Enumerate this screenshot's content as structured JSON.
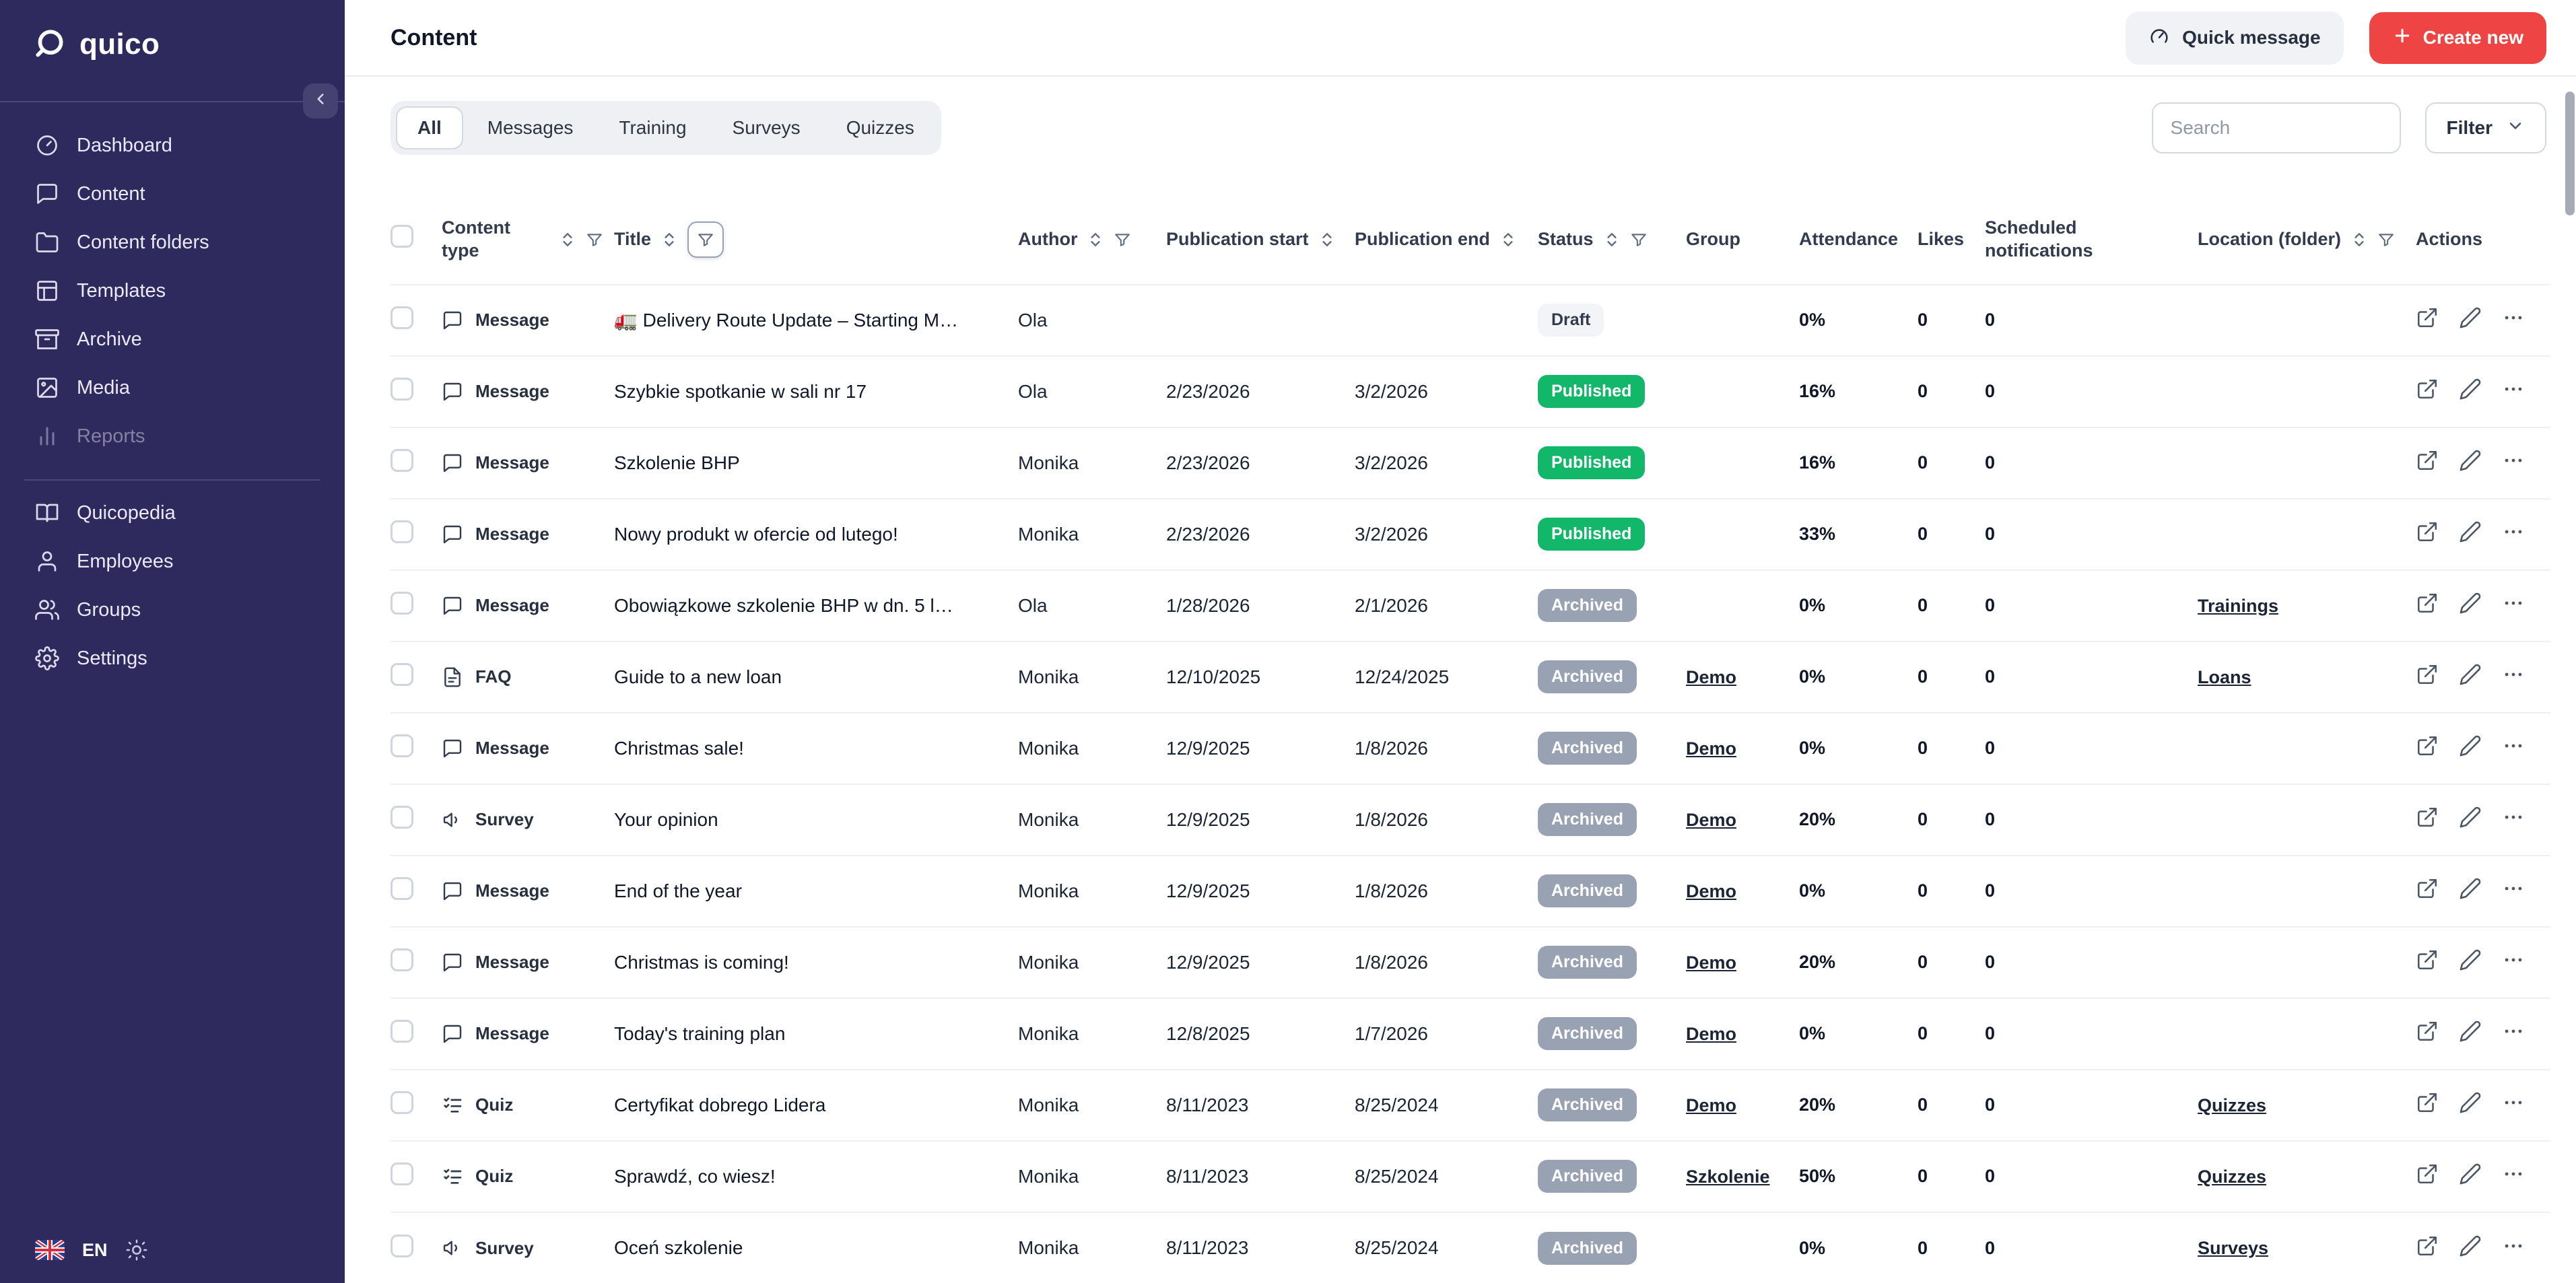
{
  "colors": {
    "sidebar_bg": "#2e2a5e",
    "accent_red": "#ef4444",
    "published_green": "#12b76a",
    "archived_gray": "#98a2b3",
    "draft_bg": "#f2f4f7"
  },
  "sidebar": {
    "logo_text": "quico",
    "language": "EN",
    "primary_items": [
      {
        "id": "dashboard",
        "label": "Dashboard",
        "icon": "dashboard-icon",
        "muted": false
      },
      {
        "id": "content",
        "label": "Content",
        "icon": "chat-icon",
        "muted": false
      },
      {
        "id": "content-folders",
        "label": "Content folders",
        "icon": "folder-icon",
        "muted": false
      },
      {
        "id": "templates",
        "label": "Templates",
        "icon": "template-icon",
        "muted": false
      },
      {
        "id": "archive",
        "label": "Archive",
        "icon": "archive-icon",
        "muted": false
      },
      {
        "id": "media",
        "label": "Media",
        "icon": "image-icon",
        "muted": false
      },
      {
        "id": "reports",
        "label": "Reports",
        "icon": "bar-chart-icon",
        "muted": true
      }
    ],
    "secondary_items": [
      {
        "id": "quicopedia",
        "label": "Quicopedia",
        "icon": "book-icon",
        "muted": false
      },
      {
        "id": "employees",
        "label": "Employees",
        "icon": "user-icon",
        "muted": false
      },
      {
        "id": "groups",
        "label": "Groups",
        "icon": "users-icon",
        "muted": false
      },
      {
        "id": "settings",
        "label": "Settings",
        "icon": "gear-icon",
        "muted": false
      }
    ]
  },
  "header": {
    "title": "Content",
    "quick_message_label": "Quick message",
    "create_new_label": "Create new"
  },
  "toolbar": {
    "tabs": [
      {
        "label": "All",
        "active": true
      },
      {
        "label": "Messages",
        "active": false
      },
      {
        "label": "Training",
        "active": false
      },
      {
        "label": "Surveys",
        "active": false
      },
      {
        "label": "Quizzes",
        "active": false
      }
    ],
    "search_placeholder": "Search",
    "filter_label": "Filter"
  },
  "table": {
    "columns": [
      {
        "id": "type",
        "label": "Content type",
        "sort": true,
        "filter": true,
        "filter_active": false
      },
      {
        "id": "title",
        "label": "Title",
        "sort": true,
        "filter": true,
        "filter_active": true
      },
      {
        "id": "author",
        "label": "Author",
        "sort": true,
        "filter": true,
        "filter_active": false
      },
      {
        "id": "pub_start",
        "label": "Publication start",
        "sort": true,
        "filter": false,
        "filter_active": false
      },
      {
        "id": "pub_end",
        "label": "Publication end",
        "sort": true,
        "filter": false,
        "filter_active": false
      },
      {
        "id": "status",
        "label": "Status",
        "sort": true,
        "filter": true,
        "filter_active": false
      },
      {
        "id": "group",
        "label": "Group",
        "sort": false,
        "filter": false,
        "filter_active": false
      },
      {
        "id": "attendance",
        "label": "Attendance",
        "sort": false,
        "filter": false,
        "filter_active": false
      },
      {
        "id": "likes",
        "label": "Likes",
        "sort": false,
        "filter": false,
        "filter_active": false
      },
      {
        "id": "notifications",
        "label": "Scheduled notifications",
        "sort": false,
        "filter": false,
        "filter_active": false
      },
      {
        "id": "location",
        "label": "Location (folder)",
        "sort": true,
        "filter": true,
        "filter_active": false
      },
      {
        "id": "actions",
        "label": "Actions",
        "sort": false,
        "filter": false,
        "filter_active": false
      }
    ],
    "rows": [
      {
        "type": "Message",
        "title": "🚛 Delivery Route Update – Starting M…",
        "author": "Ola",
        "pub_start": "",
        "pub_end": "",
        "status": "Draft",
        "group": "",
        "attendance": "0%",
        "likes": "0",
        "notifications": "0",
        "location": ""
      },
      {
        "type": "Message",
        "title": "Szybkie spotkanie w sali nr 17",
        "author": "Ola",
        "pub_start": "2/23/2026",
        "pub_end": "3/2/2026",
        "status": "Published",
        "group": "",
        "attendance": "16%",
        "likes": "0",
        "notifications": "0",
        "location": ""
      },
      {
        "type": "Message",
        "title": "Szkolenie BHP",
        "author": "Monika",
        "pub_start": "2/23/2026",
        "pub_end": "3/2/2026",
        "status": "Published",
        "group": "",
        "attendance": "16%",
        "likes": "0",
        "notifications": "0",
        "location": ""
      },
      {
        "type": "Message",
        "title": "Nowy produkt w ofercie od lutego!",
        "author": "Monika",
        "pub_start": "2/23/2026",
        "pub_end": "3/2/2026",
        "status": "Published",
        "group": "",
        "attendance": "33%",
        "likes": "0",
        "notifications": "0",
        "location": ""
      },
      {
        "type": "Message",
        "title": "Obowiązkowe szkolenie BHP w dn. 5 l…",
        "author": "Ola",
        "pub_start": "1/28/2026",
        "pub_end": "2/1/2026",
        "status": "Archived",
        "group": "",
        "attendance": "0%",
        "likes": "0",
        "notifications": "0",
        "location": "Trainings"
      },
      {
        "type": "FAQ",
        "title": "Guide to a new loan",
        "author": "Monika",
        "pub_start": "12/10/2025",
        "pub_end": "12/24/2025",
        "status": "Archived",
        "group": "Demo",
        "attendance": "0%",
        "likes": "0",
        "notifications": "0",
        "location": "Loans"
      },
      {
        "type": "Message",
        "title": "Christmas sale!",
        "author": "Monika",
        "pub_start": "12/9/2025",
        "pub_end": "1/8/2026",
        "status": "Archived",
        "group": "Demo",
        "attendance": "0%",
        "likes": "0",
        "notifications": "0",
        "location": ""
      },
      {
        "type": "Survey",
        "title": "Your opinion",
        "author": "Monika",
        "pub_start": "12/9/2025",
        "pub_end": "1/8/2026",
        "status": "Archived",
        "group": "Demo",
        "attendance": "20%",
        "likes": "0",
        "notifications": "0",
        "location": ""
      },
      {
        "type": "Message",
        "title": "End of the year",
        "author": "Monika",
        "pub_start": "12/9/2025",
        "pub_end": "1/8/2026",
        "status": "Archived",
        "group": "Demo",
        "attendance": "0%",
        "likes": "0",
        "notifications": "0",
        "location": ""
      },
      {
        "type": "Message",
        "title": "Christmas is coming!",
        "author": "Monika",
        "pub_start": "12/9/2025",
        "pub_end": "1/8/2026",
        "status": "Archived",
        "group": "Demo",
        "attendance": "20%",
        "likes": "0",
        "notifications": "0",
        "location": ""
      },
      {
        "type": "Message",
        "title": "Today's training plan",
        "author": "Monika",
        "pub_start": "12/8/2025",
        "pub_end": "1/7/2026",
        "status": "Archived",
        "group": "Demo",
        "attendance": "0%",
        "likes": "0",
        "notifications": "0",
        "location": ""
      },
      {
        "type": "Quiz",
        "title": "Certyfikat dobrego Lidera",
        "author": "Monika",
        "pub_start": "8/11/2023",
        "pub_end": "8/25/2024",
        "status": "Archived",
        "group": "Demo",
        "attendance": "20%",
        "likes": "0",
        "notifications": "0",
        "location": "Quizzes"
      },
      {
        "type": "Quiz",
        "title": "Sprawdź, co wiesz!",
        "author": "Monika",
        "pub_start": "8/11/2023",
        "pub_end": "8/25/2024",
        "status": "Archived",
        "group": "Szkolenie",
        "attendance": "50%",
        "likes": "0",
        "notifications": "0",
        "location": "Quizzes"
      },
      {
        "type": "Survey",
        "title": "Oceń szkolenie",
        "author": "Monika",
        "pub_start": "8/11/2023",
        "pub_end": "8/25/2024",
        "status": "Archived",
        "group": "",
        "attendance": "0%",
        "likes": "0",
        "notifications": "0",
        "location": "Surveys"
      }
    ]
  }
}
